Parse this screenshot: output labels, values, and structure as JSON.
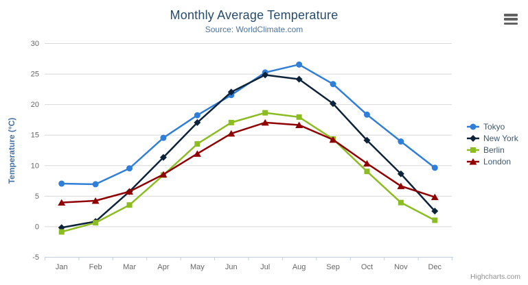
{
  "title": "Monthly Average Temperature",
  "subtitle": "Source: WorldClimate.com",
  "credits": "Highcharts.com",
  "export_menu": {
    "icon": "hamburger-icon"
  },
  "colors": {
    "title": "#274b6d",
    "subtitle": "#4d759e",
    "axis_title": "#4572a7",
    "tick_label": "#666666",
    "grid": "#d8d8d8",
    "axis_line": "#c0d0e0",
    "credits": "#909090",
    "legend_text": "#3e576f"
  },
  "chart_data": {
    "type": "line",
    "title": "Monthly Average Temperature",
    "subtitle": "Source: WorldClimate.com",
    "categories": [
      "Jan",
      "Feb",
      "Mar",
      "Apr",
      "May",
      "Jun",
      "Jul",
      "Aug",
      "Sep",
      "Oct",
      "Nov",
      "Dec"
    ],
    "series": [
      {
        "name": "Tokyo",
        "color": "#2f7ed8",
        "marker": "circle",
        "values": [
          7.0,
          6.9,
          9.5,
          14.5,
          18.2,
          21.5,
          25.2,
          26.5,
          23.3,
          18.3,
          13.9,
          9.6
        ]
      },
      {
        "name": "New York",
        "color": "#0d233a",
        "marker": "diamond",
        "values": [
          -0.2,
          0.8,
          5.7,
          11.3,
          17.0,
          22.0,
          24.8,
          24.1,
          20.1,
          14.1,
          8.6,
          2.5
        ]
      },
      {
        "name": "Berlin",
        "color": "#8bbc21",
        "marker": "square",
        "values": [
          -0.9,
          0.6,
          3.5,
          8.4,
          13.5,
          17.0,
          18.6,
          17.9,
          14.3,
          9.0,
          3.9,
          1.0
        ]
      },
      {
        "name": "London",
        "color": "#910000",
        "marker": "triangle",
        "values": [
          3.9,
          4.2,
          5.7,
          8.5,
          11.9,
          15.2,
          17.0,
          16.6,
          14.2,
          10.3,
          6.6,
          4.8
        ]
      }
    ],
    "xlabel": "",
    "ylabel": "Temperature (°C)",
    "ylim": [
      -5,
      30
    ],
    "ytick_step": 5,
    "grid": true,
    "legend_position": "right"
  }
}
